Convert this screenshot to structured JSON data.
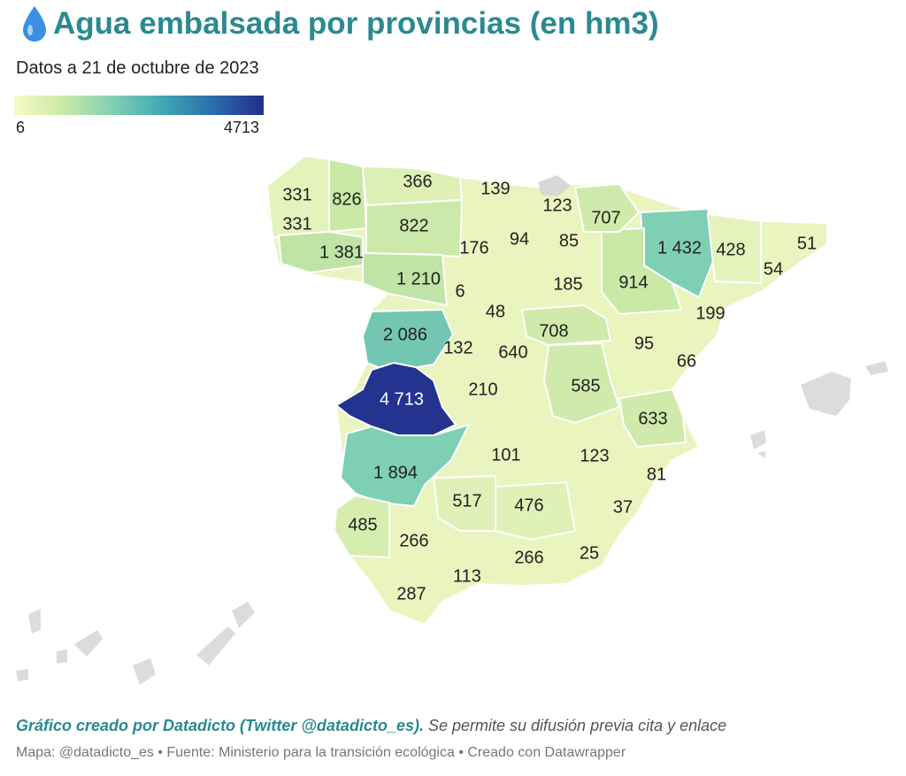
{
  "header": {
    "title": "Agua embalsada por provincias (en hm3)",
    "subtitle": "Datos a 21 de octubre de 2023",
    "icon": "water-drop-icon"
  },
  "legend": {
    "min_label": "6",
    "max_label": "4713",
    "colors": [
      "#f7fbc6",
      "#c9e9a6",
      "#7fcfb4",
      "#3fa6b4",
      "#2a6cac",
      "#222e8c"
    ]
  },
  "map_data": {
    "type": "choropleth",
    "region": "Spain (provinces)",
    "values": [
      "331",
      "826",
      "366",
      "139",
      "123",
      "331",
      "822",
      "707",
      "176",
      "94",
      "85",
      "1 381",
      "1 432",
      "428",
      "51",
      "1 210",
      "54",
      "6",
      "185",
      "914",
      "48",
      "199",
      "2 086",
      "708",
      "132",
      "640",
      "95",
      "66",
      "4 713",
      "210",
      "585",
      "633",
      "101",
      "123",
      "81",
      "1 894",
      "517",
      "476",
      "37",
      "485",
      "266",
      "25",
      "266",
      "113",
      "287"
    ]
  },
  "footer": {
    "credit_bold": "Gráfico creado por Datadicto (Twitter @datadicto_es).",
    "credit_rest": " Se permite su difusión previa cita y enlace",
    "source": "Mapa: @datadicto_es • Fuente: Ministerio para la transición ecológica • Creado con Datawrapper"
  }
}
